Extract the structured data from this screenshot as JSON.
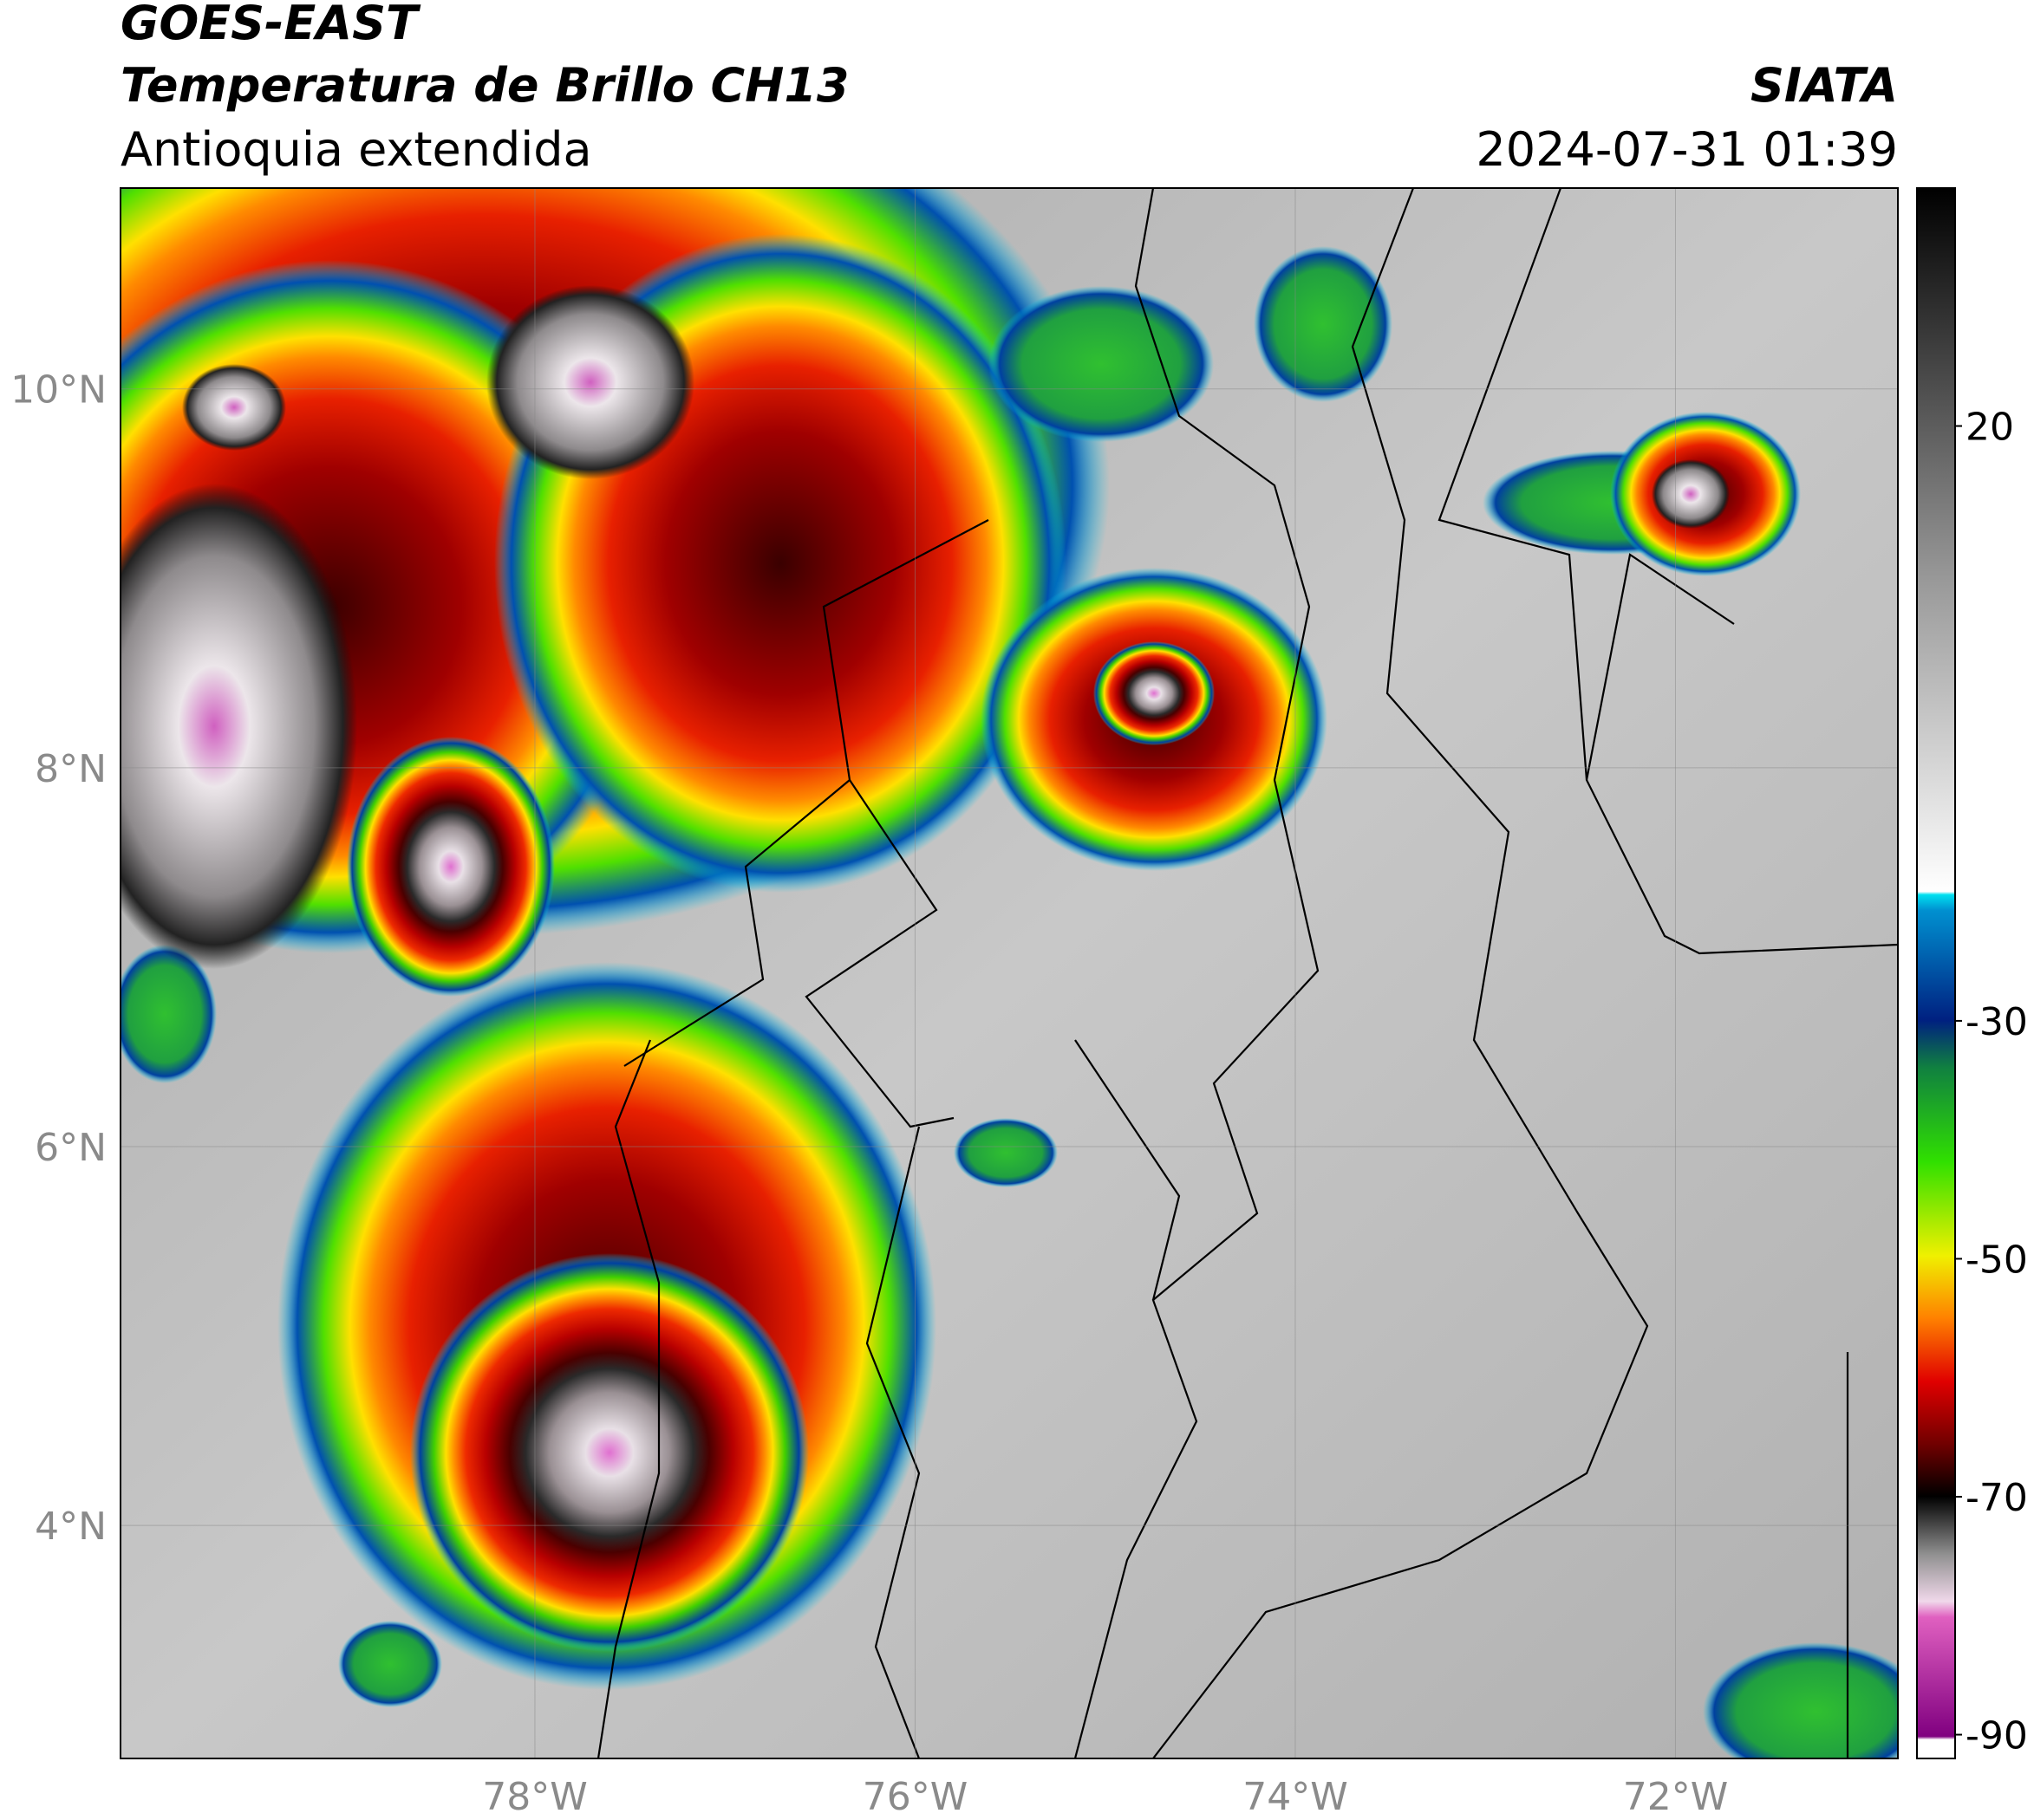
{
  "header": {
    "title": "GOES-EAST",
    "subtitle": "Temperatura de Brillo CH13",
    "region": "Antioquia extendida",
    "source": "SIATA",
    "datetime": "2024-07-31 01:39"
  },
  "map": {
    "lon_range": [
      -80.18,
      -70.83
    ],
    "lat_range": [
      2.77,
      11.06
    ],
    "lon_ticks": [
      {
        "value": -78,
        "label": "78°W"
      },
      {
        "value": -76,
        "label": "76°W"
      },
      {
        "value": -74,
        "label": "74°W"
      },
      {
        "value": -72,
        "label": "72°W"
      }
    ],
    "lat_ticks": [
      {
        "value": 10,
        "label": "10°N"
      },
      {
        "value": 8,
        "label": "8°N"
      },
      {
        "value": 6,
        "label": "6°N"
      },
      {
        "value": 4,
        "label": "4°N"
      }
    ],
    "grid": true
  },
  "colorbar": {
    "range": [
      -92,
      40
    ],
    "ticks": [
      20,
      -30,
      -50,
      -70,
      -90
    ]
  }
}
